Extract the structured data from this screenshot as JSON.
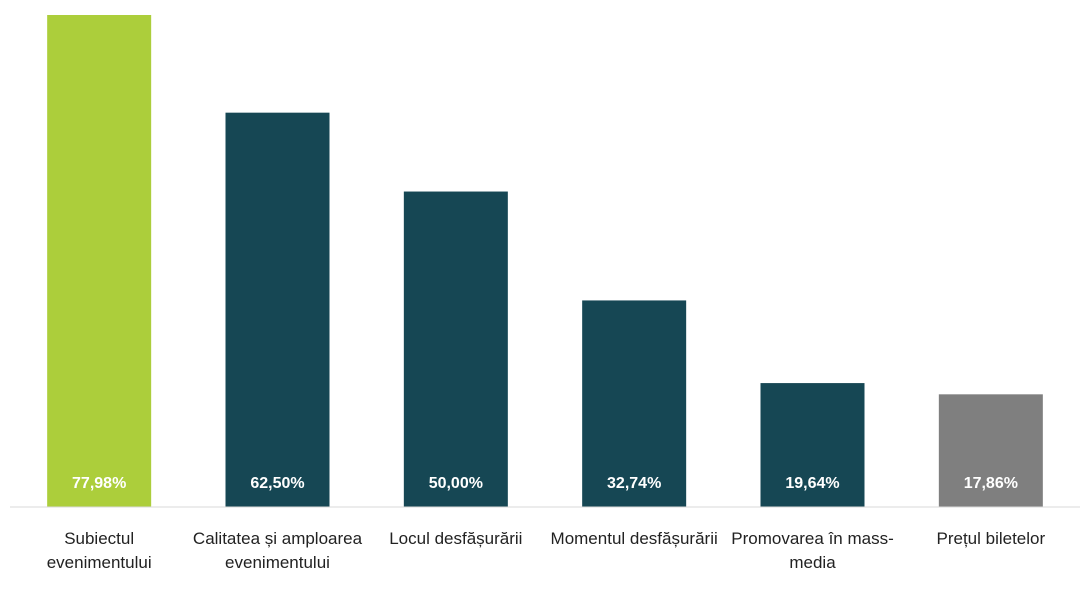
{
  "chart_data": {
    "type": "bar",
    "categories": [
      "Subiectul evenimentului",
      "Calitatea și amploarea evenimentului",
      "Locul desfășurării",
      "Momentul desfășurării",
      "Promovarea în mass-media",
      "Prețul biletelor"
    ],
    "values": [
      77.98,
      62.5,
      50,
      32.74,
      19.64,
      17.86
    ],
    "value_labels": [
      "77,98%",
      "62,50%",
      "50,00%",
      "32,74%",
      "19,64%",
      "17,86%"
    ],
    "colors": [
      "#acce3b",
      "#164754",
      "#164754",
      "#164754",
      "#164754",
      "#7f7f7f"
    ]
  }
}
